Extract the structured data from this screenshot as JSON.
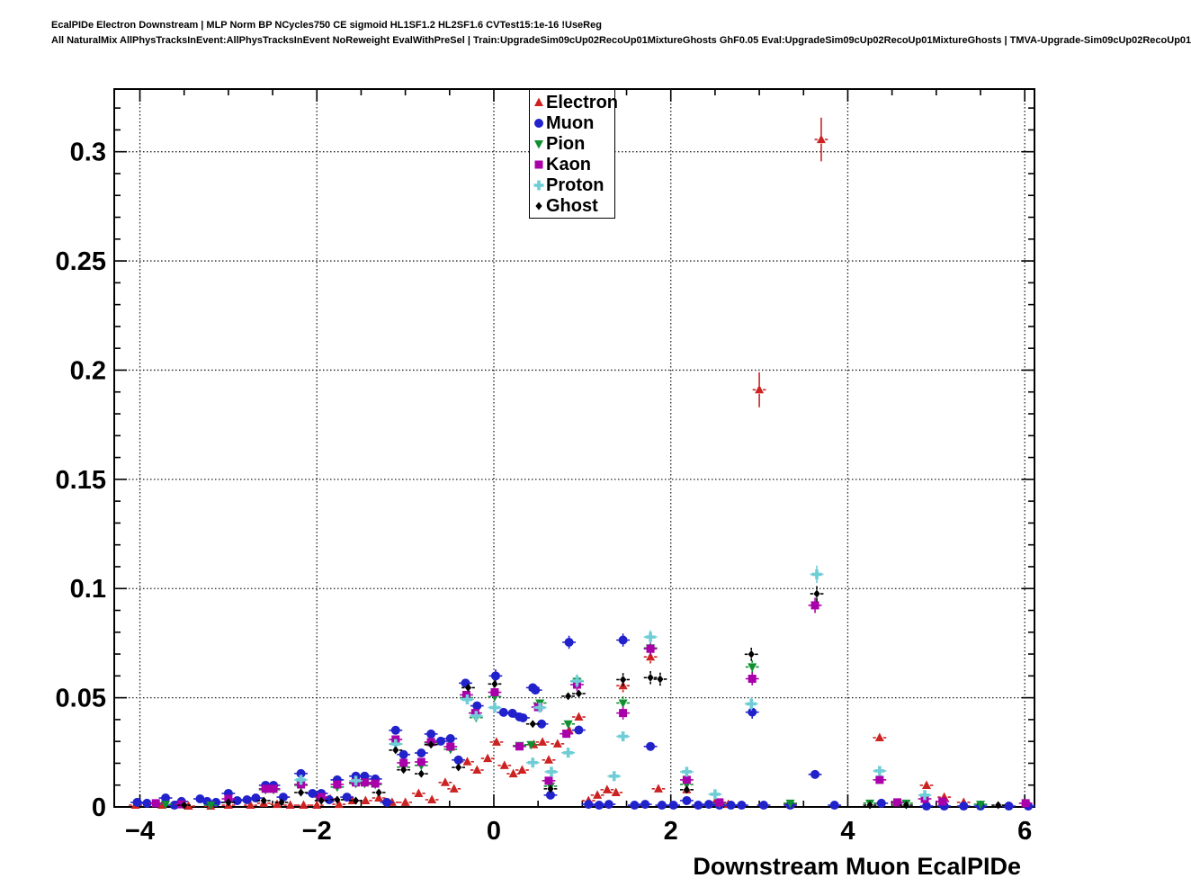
{
  "header": {
    "line1": "EcalPIDe Electron Downstream | MLP Norm BP NCycles750 CE sigmoid HL1SF1.2 HL2SF1.6 CVTest15:1e-16 !UseReg",
    "line2": "All NaturalMix AllPhysTracksInEvent:AllPhysTracksInEvent NoReweight EvalWithPreSel | Train:UpgradeSim09cUp02RecoUp01MixtureGhosts GhF0.05 Eval:UpgradeSim09cUp02RecoUp01MixtureGhosts | TMVA-Upgrade-Sim09cUp02RecoUp01"
  },
  "axes": {
    "x_label": "Downstream Muon EcalPIDe",
    "x_ticks": [
      -4,
      -2,
      0,
      2,
      4,
      6
    ],
    "x_tick_labels": [
      "−4",
      "−2",
      "0",
      "2",
      "4",
      "6"
    ],
    "y_ticks": [
      0,
      0.05,
      0.1,
      0.15,
      0.2,
      0.25,
      0.3
    ],
    "y_tick_labels": [
      "0",
      "0.05",
      "0.1",
      "0.15",
      "0.2",
      "0.25",
      "0.3"
    ],
    "xlim": [
      -4.29,
      6.11
    ],
    "ylim": [
      0,
      0.3287
    ],
    "grid": "dotted both axes at major ticks",
    "x_minor_step": 0.5,
    "y_minor_step": 0.01
  },
  "legend": {
    "position": "top, right of center",
    "entries": [
      "Electron",
      "Muon",
      "Pion",
      "Kaon",
      "Proton",
      "Ghost"
    ]
  },
  "chart_data": {
    "type": "scatter",
    "title": "EcalPIDe Electron Downstream",
    "xlabel": "Downstream Muon EcalPIDe",
    "ylabel": "",
    "xlim": [
      -4.29,
      6.11
    ],
    "ylim": [
      0,
      0.3287
    ],
    "series": [
      {
        "name": "Electron",
        "marker": "triangle-up",
        "color": "#cc2222",
        "points": [
          [
            -4.05,
            0.0008
          ],
          [
            -3.75,
            0.0008
          ],
          [
            -3.45,
            0.0004
          ],
          [
            -3.2,
            0.0004
          ],
          [
            -3.0,
            0.0008
          ],
          [
            -2.75,
            0.0008
          ],
          [
            -2.6,
            0.0017
          ],
          [
            -2.45,
            0.0012
          ],
          [
            -2.3,
            0.0008
          ],
          [
            -2.15,
            0.0008
          ],
          [
            -2.0,
            0.0008
          ],
          [
            -1.85,
            0.0037
          ],
          [
            -1.75,
            0.0012
          ],
          [
            -1.6,
            0.0029
          ],
          [
            -1.45,
            0.0029
          ],
          [
            -1.3,
            0.0041
          ],
          [
            -1.15,
            0.0021
          ],
          [
            -1.0,
            0.0021
          ],
          [
            -0.85,
            0.0062
          ],
          [
            -0.7,
            0.0033
          ],
          [
            -0.55,
            0.0112
          ],
          [
            -0.45,
            0.0083
          ],
          [
            -0.3,
            0.0207
          ],
          [
            -0.19,
            0.0169
          ],
          [
            -0.07,
            0.0222
          ],
          [
            0.03,
            0.0297
          ],
          [
            0.12,
            0.019
          ],
          [
            0.22,
            0.0152
          ],
          [
            0.32,
            0.0169
          ],
          [
            0.45,
            0.0285
          ],
          [
            0.55,
            0.0297
          ],
          [
            0.62,
            0.0215
          ],
          [
            0.72,
            0.0289
          ],
          [
            0.85,
            0.0351
          ],
          [
            0.96,
            0.0412
          ],
          [
            1.07,
            0.0029
          ],
          [
            1.17,
            0.0054
          ],
          [
            1.28,
            0.0079
          ],
          [
            1.38,
            0.0066
          ],
          [
            1.46,
            0.0555,
            0.003
          ],
          [
            1.77,
            0.0687,
            0.003
          ],
          [
            1.86,
            0.0083
          ],
          [
            2.18,
            0.0079
          ],
          [
            2.5,
            0.0021
          ],
          [
            2.65,
            0.0012
          ],
          [
            3.0,
            0.191,
            0.008
          ],
          [
            3.35,
            0.0012
          ],
          [
            3.7,
            0.3056,
            0.01
          ],
          [
            4.36,
            0.0317,
            0.002
          ],
          [
            4.89,
            0.0099
          ],
          [
            5.09,
            0.0045
          ],
          [
            5.31,
            0.0021
          ]
        ]
      },
      {
        "name": "Muon",
        "marker": "circle",
        "color": "#2222cc",
        "points": [
          [
            -4.03,
            0.0021
          ],
          [
            -3.92,
            0.0017
          ],
          [
            -3.71,
            0.0041
          ],
          [
            -3.61,
            0.0008
          ],
          [
            -3.53,
            0.0025
          ],
          [
            -3.32,
            0.0037
          ],
          [
            -3.24,
            0.0025
          ],
          [
            -3.14,
            0.0021
          ],
          [
            -3.0,
            0.0062
          ],
          [
            -2.9,
            0.0029
          ],
          [
            -2.79,
            0.0033
          ],
          [
            -2.69,
            0.0041
          ],
          [
            -2.58,
            0.0099
          ],
          [
            -2.49,
            0.0099
          ],
          [
            -2.38,
            0.0045
          ],
          [
            -2.18,
            0.0153
          ],
          [
            -2.05,
            0.0062
          ],
          [
            -1.95,
            0.0062
          ],
          [
            -1.86,
            0.0033
          ],
          [
            -1.77,
            0.0124
          ],
          [
            -1.66,
            0.0045
          ],
          [
            -1.56,
            0.0141
          ],
          [
            -1.46,
            0.0141
          ],
          [
            -1.34,
            0.0128
          ],
          [
            -1.21,
            0.0021
          ],
          [
            -1.11,
            0.0351
          ],
          [
            -1.02,
            0.024
          ],
          [
            -0.82,
            0.0247
          ],
          [
            -0.71,
            0.0334
          ],
          [
            -0.6,
            0.0301
          ],
          [
            -0.49,
            0.0313
          ],
          [
            -0.4,
            0.0215
          ],
          [
            -0.32,
            0.0567
          ],
          [
            -0.19,
            0.0463
          ],
          [
            0.02,
            0.06,
            0.003
          ],
          [
            0.11,
            0.0433
          ],
          [
            0.21,
            0.0429
          ],
          [
            0.29,
            0.0412
          ],
          [
            0.33,
            0.0408
          ],
          [
            0.44,
            0.0546
          ],
          [
            0.47,
            0.0535
          ],
          [
            0.54,
            0.038
          ],
          [
            0.64,
            0.0054
          ],
          [
            0.85,
            0.0754,
            0.003
          ],
          [
            0.96,
            0.0352
          ],
          [
            1.07,
            0.0012
          ],
          [
            1.19,
            0.0008
          ],
          [
            1.3,
            0.0012
          ],
          [
            1.46,
            0.0764,
            0.003
          ],
          [
            1.59,
            0.0008
          ],
          [
            1.71,
            0.0012
          ],
          [
            1.77,
            0.0277
          ],
          [
            1.9,
            0.0008
          ],
          [
            2.03,
            0.0008
          ],
          [
            2.18,
            0.0029
          ],
          [
            2.31,
            0.0008
          ],
          [
            2.43,
            0.0012
          ],
          [
            2.55,
            0.0008
          ],
          [
            2.68,
            0.0008
          ],
          [
            2.8,
            0.0008
          ],
          [
            2.92,
            0.0434,
            0.003
          ],
          [
            3.05,
            0.0008
          ],
          [
            3.35,
            0.0008
          ],
          [
            3.63,
            0.0149
          ],
          [
            3.85,
            0.0008
          ],
          [
            4.38,
            0.0017
          ],
          [
            4.89,
            0.0004
          ],
          [
            5.09,
            0.0004
          ],
          [
            5.31,
            0.0004
          ],
          [
            5.5,
            0.0004
          ],
          [
            5.82,
            0.0004
          ],
          [
            6.04,
            0.0004
          ]
        ]
      },
      {
        "name": "Pion",
        "marker": "triangle-down",
        "color": "#109030",
        "points": [
          [
            -3.71,
            0.0012
          ],
          [
            -3.2,
            0.0008
          ],
          [
            -2.58,
            0.0079
          ],
          [
            -2.49,
            0.0079
          ],
          [
            -2.18,
            0.0099
          ],
          [
            -1.77,
            0.0091
          ],
          [
            -1.56,
            0.0107
          ],
          [
            -1.46,
            0.0107
          ],
          [
            -1.34,
            0.0103
          ],
          [
            -1.11,
            0.0288
          ],
          [
            -1.02,
            0.0182
          ],
          [
            -0.82,
            0.019
          ],
          [
            -0.71,
            0.0293
          ],
          [
            -0.49,
            0.0264
          ],
          [
            -0.31,
            0.05
          ],
          [
            -0.2,
            0.0409
          ],
          [
            0.01,
            0.0505
          ],
          [
            0.29,
            0.0281
          ],
          [
            0.42,
            0.0285
          ],
          [
            0.52,
            0.0476
          ],
          [
            0.64,
            0.0095
          ],
          [
            0.84,
            0.038
          ],
          [
            0.94,
            0.0575,
            0.003
          ],
          [
            1.46,
            0.0476,
            0.003
          ],
          [
            1.77,
            0.0728,
            0.003
          ],
          [
            2.18,
            0.0103
          ],
          [
            2.55,
            0.0017
          ],
          [
            2.92,
            0.0641,
            0.003
          ],
          [
            3.35,
            0.0017
          ],
          [
            4.25,
            0.0017
          ],
          [
            4.66,
            0.0017
          ],
          [
            5.5,
            0.0012
          ]
        ]
      },
      {
        "name": "Kaon",
        "marker": "square",
        "color": "#aa00aa",
        "points": [
          [
            -3.82,
            0.0017
          ],
          [
            -3.53,
            0.0012
          ],
          [
            -3.0,
            0.0037
          ],
          [
            -2.58,
            0.0083
          ],
          [
            -2.49,
            0.0083
          ],
          [
            -2.18,
            0.0103
          ],
          [
            -1.95,
            0.0045
          ],
          [
            -1.77,
            0.0103
          ],
          [
            -1.56,
            0.0112
          ],
          [
            -1.46,
            0.0112
          ],
          [
            -1.34,
            0.0107
          ],
          [
            -1.11,
            0.0309
          ],
          [
            -1.02,
            0.0202
          ],
          [
            -0.82,
            0.0206
          ],
          [
            -0.71,
            0.0297
          ],
          [
            -0.49,
            0.0276
          ],
          [
            -0.31,
            0.0513
          ],
          [
            -0.21,
            0.043
          ],
          [
            0.01,
            0.0525
          ],
          [
            0.29,
            0.0277
          ],
          [
            0.5,
            0.0457
          ],
          [
            0.62,
            0.012
          ],
          [
            0.82,
            0.0335
          ],
          [
            0.94,
            0.056,
            0.003
          ],
          [
            1.46,
            0.043,
            0.003
          ],
          [
            1.77,
            0.0724,
            0.003
          ],
          [
            2.18,
            0.0124
          ],
          [
            2.55,
            0.0021
          ],
          [
            2.92,
            0.0587,
            0.003
          ],
          [
            3.63,
            0.0923,
            0.0035
          ],
          [
            4.36,
            0.0124
          ],
          [
            4.56,
            0.0021
          ],
          [
            4.87,
            0.0037
          ],
          [
            5.07,
            0.0025
          ],
          [
            6.01,
            0.0017
          ]
        ]
      },
      {
        "name": "Proton",
        "marker": "plus",
        "color": "#6fcdd6",
        "points": [
          [
            -2.18,
            0.0124
          ],
          [
            -1.56,
            0.012
          ],
          [
            -1.11,
            0.0288
          ],
          [
            -0.3,
            0.0492
          ],
          [
            -0.2,
            0.0417
          ],
          [
            0.01,
            0.0455
          ],
          [
            0.44,
            0.0203
          ],
          [
            0.52,
            0.0455
          ],
          [
            0.65,
            0.0161
          ],
          [
            0.84,
            0.0248
          ],
          [
            0.94,
            0.0577,
            0.003
          ],
          [
            1.36,
            0.0141
          ],
          [
            1.46,
            0.0323
          ],
          [
            1.77,
            0.0778,
            0.003
          ],
          [
            2.18,
            0.0161
          ],
          [
            2.5,
            0.0058
          ],
          [
            2.91,
            0.0472,
            0.003
          ],
          [
            3.65,
            0.1065,
            0.004
          ],
          [
            4.36,
            0.0165
          ],
          [
            4.87,
            0.0054
          ]
        ]
      },
      {
        "name": "Ghost",
        "marker": "diamond",
        "color": "#000000",
        "points": [
          [
            -3.5,
            0.0008
          ],
          [
            -3.0,
            0.0021
          ],
          [
            -2.6,
            0.0029
          ],
          [
            -2.4,
            0.0021
          ],
          [
            -2.18,
            0.0066
          ],
          [
            -1.95,
            0.0029
          ],
          [
            -1.77,
            0.0033
          ],
          [
            -1.56,
            0.0029
          ],
          [
            -1.3,
            0.0066
          ],
          [
            -1.11,
            0.026
          ],
          [
            -1.02,
            0.017
          ],
          [
            -0.82,
            0.0152
          ],
          [
            -0.71,
            0.0285
          ],
          [
            -0.4,
            0.0181
          ],
          [
            -0.29,
            0.0546
          ],
          [
            0.01,
            0.0563
          ],
          [
            0.44,
            0.038
          ],
          [
            0.64,
            0.0083
          ],
          [
            0.84,
            0.0507
          ],
          [
            0.96,
            0.0519
          ],
          [
            1.46,
            0.0583,
            0.003
          ],
          [
            1.77,
            0.0592,
            0.003
          ],
          [
            1.88,
            0.0585,
            0.003
          ],
          [
            2.18,
            0.0079
          ],
          [
            2.91,
            0.0699,
            0.003
          ],
          [
            3.65,
            0.0976,
            0.0035
          ],
          [
            4.25,
            0.0008
          ],
          [
            4.66,
            0.0008
          ],
          [
            5.7,
            0.0008
          ]
        ]
      }
    ]
  }
}
